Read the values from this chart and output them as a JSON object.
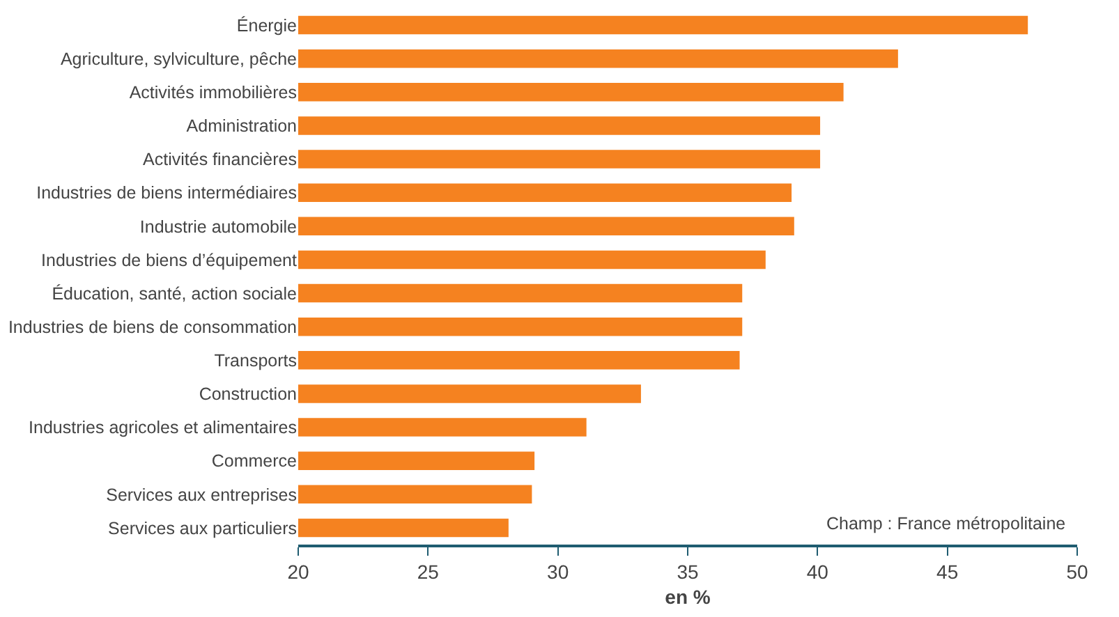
{
  "chart_data": {
    "type": "bar",
    "orientation": "horizontal",
    "xlabel": "en %",
    "categories": [
      "Énergie",
      "Agriculture, sylviculture, pêche",
      "Activités immobilières",
      "Administration",
      "Activités financières",
      "Industries de biens intermédiaires",
      "Industrie automobile",
      "Industries de biens d’équipement",
      "Éducation, santé, action sociale",
      "Industries de biens de consommation",
      "Transports",
      "Construction",
      "Industries agricoles et alimentaires",
      "Commerce",
      "Services aux entreprises",
      "Services aux particuliers"
    ],
    "values": [
      48.1,
      43.1,
      41.0,
      40.1,
      40.1,
      39.0,
      39.1,
      38.0,
      37.1,
      37.1,
      37.0,
      33.2,
      31.1,
      29.1,
      29.0,
      28.1
    ],
    "color": "#f58220",
    "xlim": [
      20,
      50
    ],
    "xticks": [
      20,
      25,
      30,
      35,
      40,
      45,
      50
    ],
    "annotations": [
      "Champ : France métropolitaine"
    ]
  }
}
